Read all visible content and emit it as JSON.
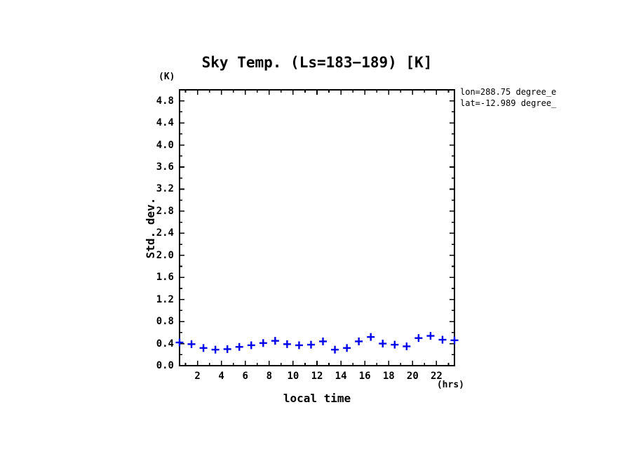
{
  "window": {
    "background": "#ffffff"
  },
  "title": "Sky Temp. (Ls=183−189) [K]",
  "annotations": {
    "line1": "lon=288.75 degree_e",
    "line2": "lat=-12.989 degree_"
  },
  "axes": {
    "y_unit": "(K)",
    "y_title": "Std. dev.",
    "x_title": "local time",
    "x_unit": "(hrs)"
  },
  "chart_data": {
    "type": "scatter",
    "title": "Sky Temp. (Ls=183-189) [K]",
    "xlabel": "local time (hrs)",
    "ylabel": "Std. dev. (K)",
    "marker": "plus",
    "marker_color": "#0000e8",
    "axis_color": "#000000",
    "grid": false,
    "legend": false,
    "xlim": [
      0.5,
      23.5
    ],
    "ylim": [
      0.0,
      5.0
    ],
    "xticks_major": [
      2,
      4,
      6,
      8,
      10,
      12,
      14,
      16,
      18,
      20,
      22
    ],
    "xticks_minor": [
      1,
      3,
      5,
      7,
      9,
      11,
      13,
      15,
      17,
      19,
      21,
      23
    ],
    "yticks_major": [
      0.0,
      0.4,
      0.8,
      1.2,
      1.6,
      2.0,
      2.4,
      2.8,
      3.2,
      3.6,
      4.0,
      4.4,
      4.8
    ],
    "ytick_labels": [
      "0.0",
      "0.4",
      "0.8",
      "1.2",
      "1.6",
      "2.0",
      "2.4",
      "2.8",
      "3.2",
      "3.6",
      "4.0",
      "4.4",
      "4.8"
    ],
    "yticks_minor": [
      0.2,
      0.6,
      1.0,
      1.4,
      1.8,
      2.2,
      2.6,
      3.0,
      3.4,
      3.8,
      4.2,
      4.6
    ],
    "x": [
      0.5,
      1.5,
      2.5,
      3.5,
      4.5,
      5.5,
      6.5,
      7.5,
      8.5,
      9.5,
      10.5,
      11.5,
      12.5,
      13.5,
      14.5,
      15.5,
      16.5,
      17.5,
      18.5,
      19.5,
      20.5,
      21.5,
      22.5,
      23.5
    ],
    "y": [
      0.42,
      0.39,
      0.32,
      0.29,
      0.3,
      0.34,
      0.37,
      0.41,
      0.45,
      0.39,
      0.37,
      0.38,
      0.44,
      0.29,
      0.32,
      0.44,
      0.52,
      0.4,
      0.38,
      0.35,
      0.5,
      0.54,
      0.47,
      0.46
    ]
  }
}
